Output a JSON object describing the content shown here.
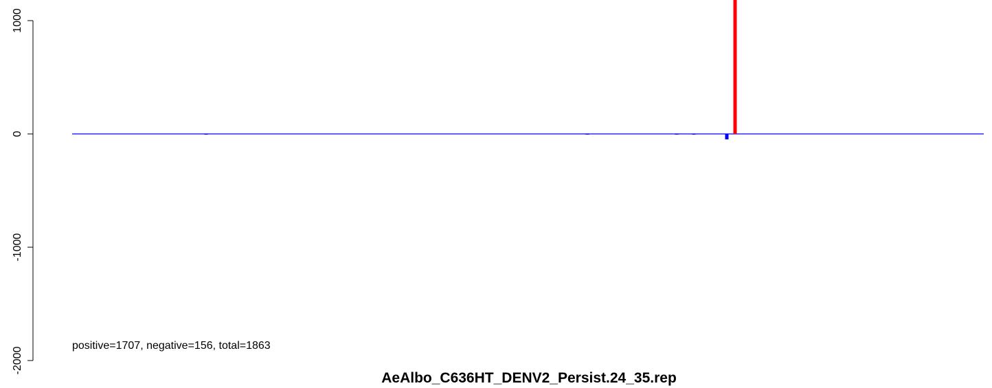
{
  "chart_data": {
    "type": "bar",
    "title": "AeAlbo_C636HT_DENV2_Persist.24_35.rep",
    "annotation": "positive=1707, negative=156, total=1863",
    "xlim": [
      0,
      1327
    ],
    "ylim": [
      -2000,
      1182
    ],
    "yticks": [
      -2000,
      -1000,
      0,
      1000
    ],
    "series": [
      {
        "color": "#ff0000",
        "x": [
          965
        ],
        "values": [
          1600
        ]
      },
      {
        "color": "#0000ff",
        "x": [
          195,
          750,
          880,
          905,
          953
        ],
        "values": [
          -5,
          -4,
          -4,
          -5,
          -48
        ]
      }
    ]
  }
}
